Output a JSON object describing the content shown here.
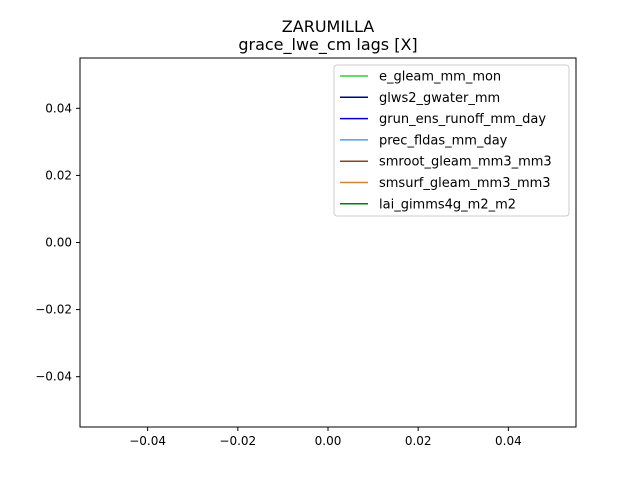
{
  "chart_data": {
    "type": "line",
    "title": "ZARUMILLA",
    "subtitle": "grace_lwe_cm lags [X]",
    "xlabel": "",
    "ylabel": "",
    "xlim": [
      -0.055,
      0.055
    ],
    "ylim": [
      -0.055,
      0.055
    ],
    "x_ticks": [
      -0.04,
      -0.02,
      0.0,
      0.02,
      0.04
    ],
    "x_tick_labels": [
      "−0.04",
      "−0.02",
      "0.00",
      "0.02",
      "0.04"
    ],
    "y_ticks": [
      -0.04,
      -0.02,
      0.0,
      0.02,
      0.04
    ],
    "y_tick_labels": [
      "−0.04",
      "−0.02",
      "0.00",
      "0.02",
      "0.04"
    ],
    "grid": false,
    "legend_position": "top-right",
    "series": [
      {
        "name": "e_gleam_mm_mon",
        "color": "#32cd32",
        "x": [],
        "y": []
      },
      {
        "name": "glws2_gwater_mm",
        "color": "#00008b",
        "x": [],
        "y": []
      },
      {
        "name": "grun_ens_runoff_mm_day",
        "color": "#0000cd",
        "x": [],
        "y": []
      },
      {
        "name": "prec_fldas_mm_day",
        "color": "#6495ed",
        "x": [],
        "y": []
      },
      {
        "name": "smroot_gleam_mm3_mm3",
        "color": "#8b4513",
        "x": [],
        "y": []
      },
      {
        "name": "smsurf_gleam_mm3_mm3",
        "color": "#cd853f",
        "x": [],
        "y": []
      },
      {
        "name": "lai_gimms4g_m2_m2",
        "color": "#008000",
        "x": [],
        "y": []
      }
    ]
  }
}
